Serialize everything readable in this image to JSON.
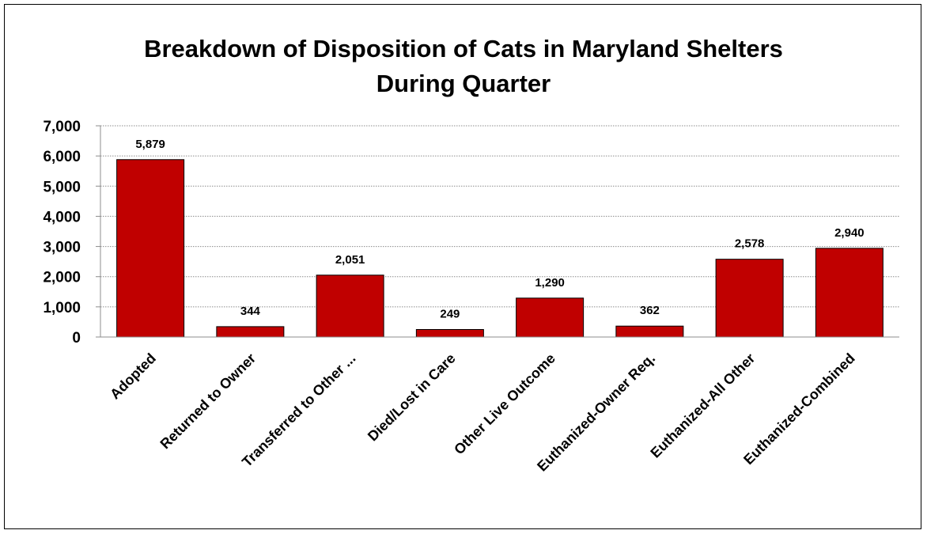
{
  "chart_data": {
    "type": "bar",
    "title": "Breakdown of Disposition of Cats in Maryland Shelters",
    "subtitle": "During Quarter",
    "categories": [
      "Adopted",
      "Returned to Owner",
      "Transferred to Other ...",
      "Died/Lost in Care",
      "Other Live Outcome",
      "Euthanized-Owner Req.",
      "Euthanized-All Other",
      "Euthanized-Combined"
    ],
    "values": [
      5879,
      344,
      2051,
      249,
      1290,
      362,
      2578,
      2940
    ],
    "data_labels": [
      "5,879",
      "344",
      "2,051",
      "249",
      "1,290",
      "362",
      "2,578",
      "2,940"
    ],
    "ylim": [
      0,
      7000
    ],
    "yticks": [
      0,
      1000,
      2000,
      3000,
      4000,
      5000,
      6000,
      7000
    ],
    "ytick_labels": [
      "0",
      "1,000",
      "2,000",
      "3,000",
      "4,000",
      "5,000",
      "6,000",
      "7,000"
    ],
    "xlabel": "",
    "ylabel": "",
    "grid": true,
    "legend": "none",
    "bar_color": "#C00000",
    "grid_color": "#8C8C8C"
  }
}
